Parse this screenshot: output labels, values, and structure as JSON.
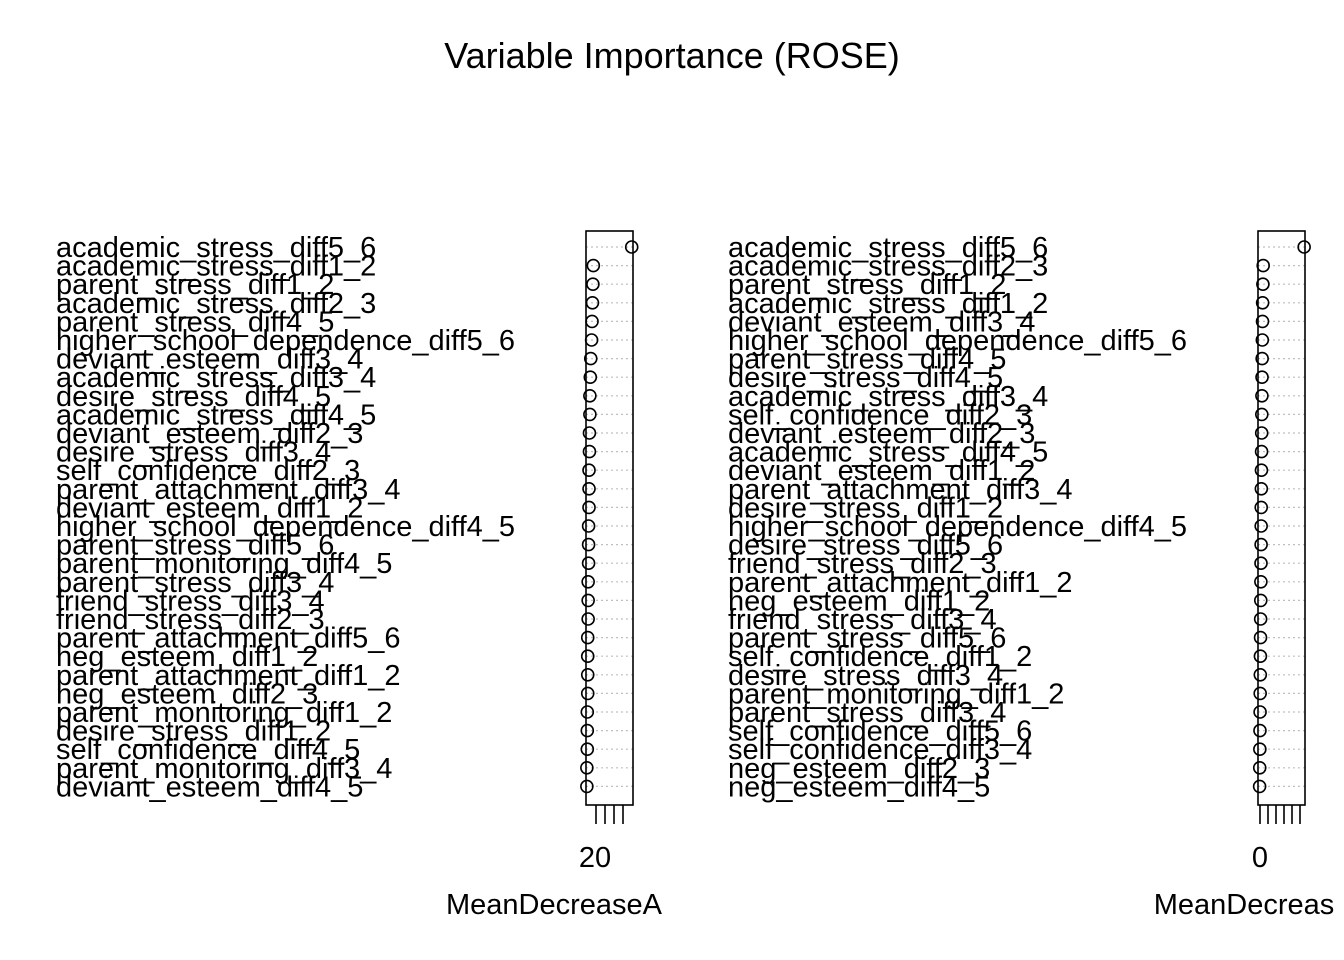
{
  "title": "Variable Importance (ROSE)",
  "chart_data": [
    {
      "type": "scatter",
      "title": "",
      "xlabel": "MeanDecreaseA",
      "ylabel": "",
      "tick_labels": [
        "20"
      ],
      "grid": true,
      "variables": [
        "academic_stress_diff5_6",
        "academic_stress_diff1_2",
        "parent_stress_diff1_2",
        "academic_stress_diff2_3",
        "parent_stress_diff4_5",
        "higher_school_dependence_diff5_6",
        "deviant_esteem_diff3_4",
        "academic_stress_diff3_4",
        "desire_stress_diff4_5",
        "academic_stress_diff4_5",
        "deviant_esteem_diff2_3",
        "desire_stress_diff3_4",
        "self_confidence_diff2_3",
        "parent_attachment_diff3_4",
        "deviant_esteem_diff1_2",
        "higher_school_dependence_diff4_5",
        "parent_stress_diff5_6",
        "parent_monitoring_diff4_5",
        "parent_stress_diff3_4",
        "friend_stress_diff3_4",
        "friend_stress_diff2_3",
        "parent_attachment_diff5_6",
        "neg_esteem_diff1_2",
        "parent_attachment_diff1_2",
        "neg_esteem_diff2_3",
        "parent_monitoring_diff1_2",
        "desire_stress_diff1_2",
        "self_confidence_diff4_5",
        "parent_monitoring_diff3_4",
        "deviant_esteem_diff4_5"
      ],
      "values": [
        30.1,
        21.2,
        21.1,
        21.0,
        20.9,
        20.8,
        20.6,
        20.5,
        20.4,
        20.4,
        20.3,
        20.3,
        20.2,
        20.2,
        20.2,
        20.1,
        20.1,
        20.1,
        20.0,
        20.0,
        20.0,
        19.9,
        19.9,
        19.9,
        19.9,
        19.8,
        19.8,
        19.8,
        19.7,
        19.7
      ]
    },
    {
      "type": "scatter",
      "title": "",
      "xlabel": "MeanDecreas",
      "ylabel": "",
      "tick_labels": [
        "0"
      ],
      "grid": true,
      "variables": [
        "academic_stress_diff5_6",
        "academic_stress_diff2_3",
        "parent_stress_diff1_2",
        "academic_stress_diff1_2",
        "deviant_esteem_diff3_4",
        "higher_school_dependence_diff5_6",
        "parent_stress_diff4_5",
        "desire_stress_diff4_5",
        "academic_stress_diff3_4",
        "self_confidence_diff2_3",
        "deviant_esteem_diff2_3",
        "academic_stress_diff4_5",
        "deviant_esteem_diff1_2",
        "parent_attachment_diff3_4",
        "desire_stress_diff1_2",
        "higher_school_dependence_diff4_5",
        "desire_stress_diff5_6",
        "friend_stress_diff2_3",
        "parent_attachment_diff1_2",
        "neg_esteem_diff1_2",
        "friend_stress_diff3_4",
        "parent_stress_diff5_6",
        "self_confidence_diff1_2",
        "desire_stress_diff3_4",
        "parent_monitoring_diff1_2",
        "parent_stress_diff3_4",
        "self_confidence_diff5_6",
        "self_confidence_diff3_4",
        "neg_esteem_diff2_3",
        "neg_esteem_diff4_5"
      ],
      "values": [
        8.0,
        0.9,
        0.85,
        0.8,
        0.78,
        0.75,
        0.72,
        0.7,
        0.68,
        0.66,
        0.64,
        0.62,
        0.6,
        0.58,
        0.56,
        0.55,
        0.54,
        0.52,
        0.5,
        0.48,
        0.46,
        0.44,
        0.42,
        0.4,
        0.38,
        0.36,
        0.34,
        0.32,
        0.3,
        0.28
      ]
    }
  ]
}
